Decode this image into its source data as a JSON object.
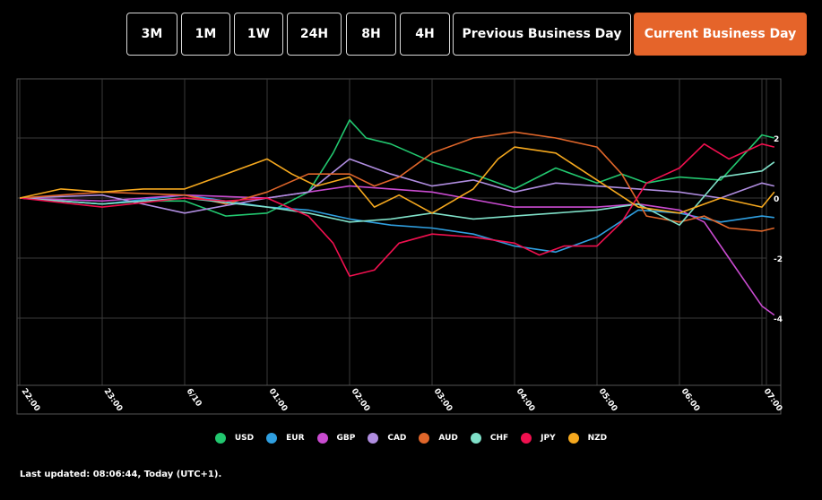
{
  "range_buttons": [
    {
      "label": "3M",
      "active": false
    },
    {
      "label": "1M",
      "active": false
    },
    {
      "label": "1W",
      "active": false
    },
    {
      "label": "24H",
      "active": false
    },
    {
      "label": "8H",
      "active": false
    },
    {
      "label": "4H",
      "active": false
    },
    {
      "label": "Previous Business Day",
      "active": false
    },
    {
      "label": "Current Business Day",
      "active": true
    }
  ],
  "accent_color": "#e5642a",
  "footer": {
    "last_updated": "Last updated: 08:06:44, Today (UTC+1)."
  },
  "chart_data": {
    "type": "line",
    "xlabel": "",
    "ylabel": "",
    "x_tick_labels": [
      "22:00",
      "23:00",
      "6/10",
      "01:00",
      "02:00",
      "03:00",
      "04:00",
      "05:00",
      "06:00",
      "07:00"
    ],
    "y_ticks": [
      2,
      0,
      -2,
      -4
    ],
    "ylim": [
      -6,
      4
    ],
    "grid": true,
    "legend_position": "bottom",
    "series": [
      {
        "name": "USD",
        "color": "#22c76f",
        "points": [
          [
            0,
            0
          ],
          [
            0.5,
            -0.1
          ],
          [
            1,
            -0.2
          ],
          [
            1.5,
            -0.1
          ],
          [
            2,
            -0.1
          ],
          [
            2.5,
            -0.6
          ],
          [
            3,
            -0.5
          ],
          [
            3.5,
            0.2
          ],
          [
            3.8,
            1.5
          ],
          [
            4,
            2.6
          ],
          [
            4.2,
            2.0
          ],
          [
            4.5,
            1.8
          ],
          [
            5,
            1.2
          ],
          [
            5.5,
            0.8
          ],
          [
            6,
            0.3
          ],
          [
            6.5,
            1.0
          ],
          [
            7,
            0.5
          ],
          [
            7.3,
            0.8
          ],
          [
            7.6,
            0.5
          ],
          [
            8,
            0.7
          ],
          [
            8.5,
            0.6
          ],
          [
            9,
            2.1
          ],
          [
            9.15,
            2.0
          ]
        ]
      },
      {
        "name": "EUR",
        "color": "#2f9fe0",
        "points": [
          [
            0,
            0
          ],
          [
            0.5,
            -0.1
          ],
          [
            1,
            -0.2
          ],
          [
            2,
            0.1
          ],
          [
            3,
            -0.3
          ],
          [
            3.5,
            -0.4
          ],
          [
            4,
            -0.7
          ],
          [
            4.5,
            -0.9
          ],
          [
            5,
            -1.0
          ],
          [
            5.5,
            -1.2
          ],
          [
            6,
            -1.6
          ],
          [
            6.5,
            -1.8
          ],
          [
            7,
            -1.3
          ],
          [
            7.5,
            -0.4
          ],
          [
            8,
            -0.5
          ],
          [
            8.5,
            -0.8
          ],
          [
            9,
            -0.6
          ],
          [
            9.15,
            -0.65
          ]
        ]
      },
      {
        "name": "GBP",
        "color": "#c94bd0",
        "points": [
          [
            0,
            0
          ],
          [
            1,
            -0.1
          ],
          [
            2,
            0.1
          ],
          [
            3,
            0.0
          ],
          [
            4,
            0.4
          ],
          [
            5,
            0.2
          ],
          [
            6,
            -0.3
          ],
          [
            7,
            -0.3
          ],
          [
            7.5,
            -0.2
          ],
          [
            8,
            -0.4
          ],
          [
            8.3,
            -0.8
          ],
          [
            8.6,
            -2.0
          ],
          [
            8.8,
            -2.8
          ],
          [
            9,
            -3.6
          ],
          [
            9.15,
            -3.9
          ]
        ]
      },
      {
        "name": "CAD",
        "color": "#b08de0",
        "points": [
          [
            0,
            0
          ],
          [
            1,
            0.1
          ],
          [
            2,
            -0.5
          ],
          [
            3,
            0.0
          ],
          [
            3.5,
            0.2
          ],
          [
            4,
            1.3
          ],
          [
            4.5,
            0.8
          ],
          [
            5,
            0.4
          ],
          [
            5.5,
            0.6
          ],
          [
            6,
            0.2
          ],
          [
            6.5,
            0.5
          ],
          [
            7,
            0.4
          ],
          [
            7.5,
            0.3
          ],
          [
            8,
            0.2
          ],
          [
            8.5,
            0.0
          ],
          [
            9,
            0.5
          ],
          [
            9.15,
            0.4
          ]
        ]
      },
      {
        "name": "AUD",
        "color": "#e0662a",
        "points": [
          [
            0,
            0
          ],
          [
            1,
            0.2
          ],
          [
            2,
            0.1
          ],
          [
            2.5,
            -0.2
          ],
          [
            3,
            0.2
          ],
          [
            3.5,
            0.8
          ],
          [
            4,
            0.8
          ],
          [
            4.3,
            0.4
          ],
          [
            4.6,
            0.7
          ],
          [
            5,
            1.5
          ],
          [
            5.5,
            2.0
          ],
          [
            6,
            2.2
          ],
          [
            6.5,
            2.0
          ],
          [
            7,
            1.7
          ],
          [
            7.3,
            0.8
          ],
          [
            7.6,
            -0.6
          ],
          [
            8,
            -0.8
          ],
          [
            8.3,
            -0.6
          ],
          [
            8.6,
            -1.0
          ],
          [
            9,
            -1.1
          ],
          [
            9.15,
            -1.0
          ]
        ]
      },
      {
        "name": "CHF",
        "color": "#7fe0c8",
        "points": [
          [
            0,
            0
          ],
          [
            1,
            -0.2
          ],
          [
            2,
            0.0
          ],
          [
            3,
            -0.3
          ],
          [
            3.5,
            -0.5
          ],
          [
            4,
            -0.8
          ],
          [
            4.5,
            -0.7
          ],
          [
            5,
            -0.5
          ],
          [
            5.5,
            -0.7
          ],
          [
            6,
            -0.6
          ],
          [
            6.5,
            -0.5
          ],
          [
            7,
            -0.4
          ],
          [
            7.5,
            -0.2
          ],
          [
            8,
            -0.9
          ],
          [
            8.5,
            0.7
          ],
          [
            9,
            0.9
          ],
          [
            9.15,
            1.2
          ]
        ]
      },
      {
        "name": "JPY",
        "color": "#f0104f",
        "points": [
          [
            0,
            0
          ],
          [
            1,
            -0.3
          ],
          [
            2,
            0.0
          ],
          [
            2.5,
            -0.1
          ],
          [
            3,
            0.0
          ],
          [
            3.5,
            -0.6
          ],
          [
            3.8,
            -1.5
          ],
          [
            4,
            -2.6
          ],
          [
            4.3,
            -2.4
          ],
          [
            4.6,
            -1.5
          ],
          [
            5,
            -1.2
          ],
          [
            5.5,
            -1.3
          ],
          [
            6,
            -1.5
          ],
          [
            6.3,
            -1.9
          ],
          [
            6.6,
            -1.6
          ],
          [
            7,
            -1.6
          ],
          [
            7.3,
            -0.8
          ],
          [
            7.6,
            0.5
          ],
          [
            8,
            1.0
          ],
          [
            8.3,
            1.8
          ],
          [
            8.6,
            1.3
          ],
          [
            9,
            1.8
          ],
          [
            9.15,
            1.7
          ]
        ]
      },
      {
        "name": "NZD",
        "color": "#f5a81e",
        "points": [
          [
            0,
            0
          ],
          [
            0.5,
            0.3
          ],
          [
            1,
            0.2
          ],
          [
            1.5,
            0.3
          ],
          [
            2,
            0.3
          ],
          [
            2.5,
            0.8
          ],
          [
            3,
            1.3
          ],
          [
            3.3,
            0.8
          ],
          [
            3.6,
            0.4
          ],
          [
            4,
            0.7
          ],
          [
            4.3,
            -0.3
          ],
          [
            4.6,
            0.1
          ],
          [
            5,
            -0.5
          ],
          [
            5.5,
            0.3
          ],
          [
            5.8,
            1.3
          ],
          [
            6,
            1.7
          ],
          [
            6.5,
            1.5
          ],
          [
            7,
            0.6
          ],
          [
            7.5,
            -0.3
          ],
          [
            8,
            -0.5
          ],
          [
            8.5,
            0.0
          ],
          [
            9,
            -0.3
          ],
          [
            9.15,
            0.2
          ]
        ]
      }
    ]
  }
}
